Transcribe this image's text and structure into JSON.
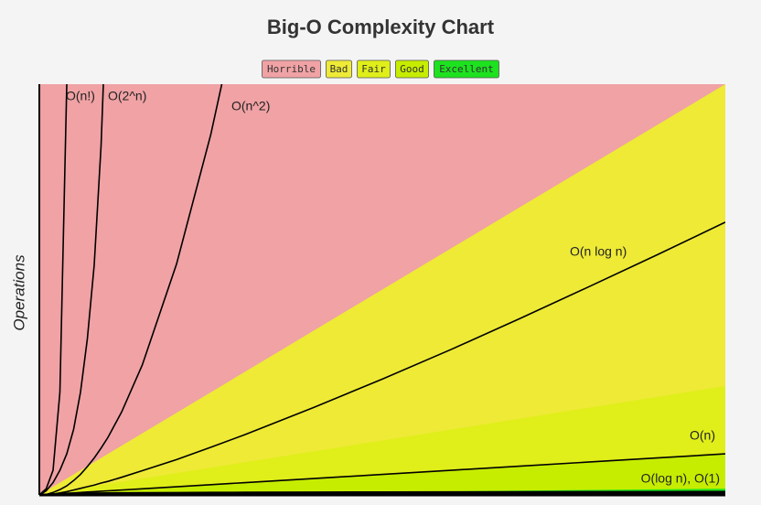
{
  "chart_data": {
    "type": "complexity",
    "title": "Big-O Complexity Chart",
    "y_label": "Operations",
    "xlim": [
      0,
      100
    ],
    "ylim": [
      0,
      1000
    ],
    "zones": [
      {
        "name": "Horrible",
        "color": "#f0a2a5"
      },
      {
        "name": "Bad",
        "color": "#eeea36",
        "edge": [
          0,
          1000
        ]
      },
      {
        "name": "Fair",
        "color": "#e0ee1a",
        "edge": [
          0,
          265
        ]
      },
      {
        "name": "Good",
        "color": "#c6ed00",
        "edge": [
          0,
          100
        ]
      },
      {
        "name": "Excellent",
        "color": "#1de21f",
        "edge": [
          0,
          15
        ]
      }
    ],
    "zone_x": [
      0,
      100
    ],
    "x": [
      0,
      1,
      2,
      3,
      4,
      5,
      6,
      7,
      8,
      9,
      10,
      12,
      15,
      20,
      25,
      30,
      40,
      50,
      60,
      70,
      80,
      90,
      100
    ],
    "series": [
      {
        "name": "O(n!)",
        "color": "#000000",
        "values": [
          0,
          15,
          60,
          250,
          1000,
          null,
          null,
          null,
          null,
          null,
          null,
          null,
          null,
          null,
          null,
          null,
          null,
          null,
          null,
          null,
          null,
          null,
          null
        ]
      },
      {
        "name": "O(2^n)",
        "color": "#000000",
        "values": [
          0,
          10,
          30,
          60,
          100,
          160,
          250,
          380,
          560,
          850,
          1300,
          null,
          null,
          null,
          null,
          null,
          null,
          null,
          null,
          null,
          null,
          null,
          null
        ]
      },
      {
        "name": "O(n^2)",
        "color": "#000000",
        "values": [
          0,
          1,
          6,
          13,
          22,
          35,
          50,
          69,
          90,
          114,
          140,
          202,
          316,
          562,
          878,
          1260,
          null,
          null,
          null,
          null,
          null,
          null,
          null
        ]
      },
      {
        "name": "O(n log n)",
        "color": "#000000",
        "values": [
          0,
          0,
          2,
          5,
          8,
          12,
          16,
          20,
          24,
          29,
          33,
          43,
          59,
          86,
          116,
          147,
          213,
          282,
          354,
          429,
          506,
          584,
          664
        ]
      },
      {
        "name": "O(n)",
        "color": "#000000",
        "values": [
          0,
          1,
          2,
          3,
          4,
          5,
          6,
          7,
          8,
          9,
          10,
          12,
          15,
          20,
          25,
          30,
          40,
          50,
          60,
          70,
          80,
          90,
          100
        ]
      },
      {
        "name": "O(log n), O(1)",
        "color": "#000000",
        "values": [
          0,
          0,
          1,
          1.6,
          2,
          2.3,
          2.6,
          2.8,
          3,
          3.2,
          3.3,
          3.6,
          3.9,
          4.3,
          4.6,
          4.9,
          5.3,
          5.6,
          5.9,
          6.1,
          6.3,
          6.5,
          6.6
        ]
      }
    ]
  }
}
